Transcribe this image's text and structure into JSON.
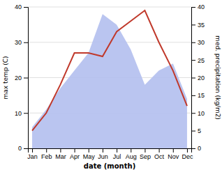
{
  "chart_data": {
    "type": "line",
    "categories": [
      "Jan",
      "Feb",
      "Mar",
      "Apr",
      "May",
      "Jun",
      "Jul",
      "Aug",
      "Sep",
      "Oct",
      "Nov",
      "Dec"
    ],
    "xlabel": "date (month)",
    "ylabel": "max temp (C)",
    "y2label": "med. precipitation (kg/m2)",
    "series": [
      {
        "type": "area",
        "axis": "y2",
        "color": "#b3bfee",
        "values": [
          6,
          11,
          17,
          22,
          27,
          38,
          35,
          28,
          18,
          22,
          24,
          14
        ]
      },
      {
        "type": "line",
        "color": "#c0392b",
        "values": [
          5,
          10,
          18,
          27,
          27,
          26,
          33,
          36,
          39,
          30,
          22,
          12
        ]
      }
    ],
    "ylim": [
      0,
      40
    ],
    "yticks": [
      0,
      10,
      20,
      30,
      40
    ],
    "y2lim": [
      0,
      40
    ],
    "y2ticks": [
      0,
      5,
      10,
      15,
      20,
      25,
      30,
      35,
      40
    ],
    "grid": true
  }
}
